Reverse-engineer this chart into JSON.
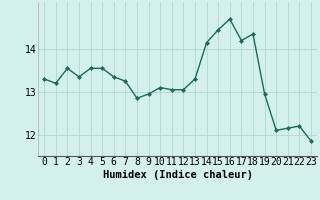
{
  "x": [
    0,
    1,
    2,
    3,
    4,
    5,
    6,
    7,
    8,
    9,
    10,
    11,
    12,
    13,
    14,
    15,
    16,
    17,
    18,
    19,
    20,
    21,
    22,
    23
  ],
  "y": [
    13.3,
    13.2,
    13.55,
    13.35,
    13.55,
    13.55,
    13.35,
    13.25,
    12.85,
    12.95,
    13.1,
    13.05,
    13.05,
    13.3,
    14.15,
    14.45,
    14.7,
    14.2,
    14.35,
    12.95,
    12.1,
    12.15,
    12.2,
    11.85
  ],
  "line_color": "#1a6b5a",
  "marker_color": "#1a6b5a",
  "bg_color": "#d4f0eb",
  "grid_color": "#aed8d2",
  "xlabel": "Humidex (Indice chaleur)",
  "yticks": [
    12,
    13,
    14
  ],
  "ylim": [
    11.5,
    15.1
  ],
  "xlim": [
    -0.5,
    23.5
  ],
  "xlabel_fontsize": 7.5,
  "tick_fontsize": 7
}
